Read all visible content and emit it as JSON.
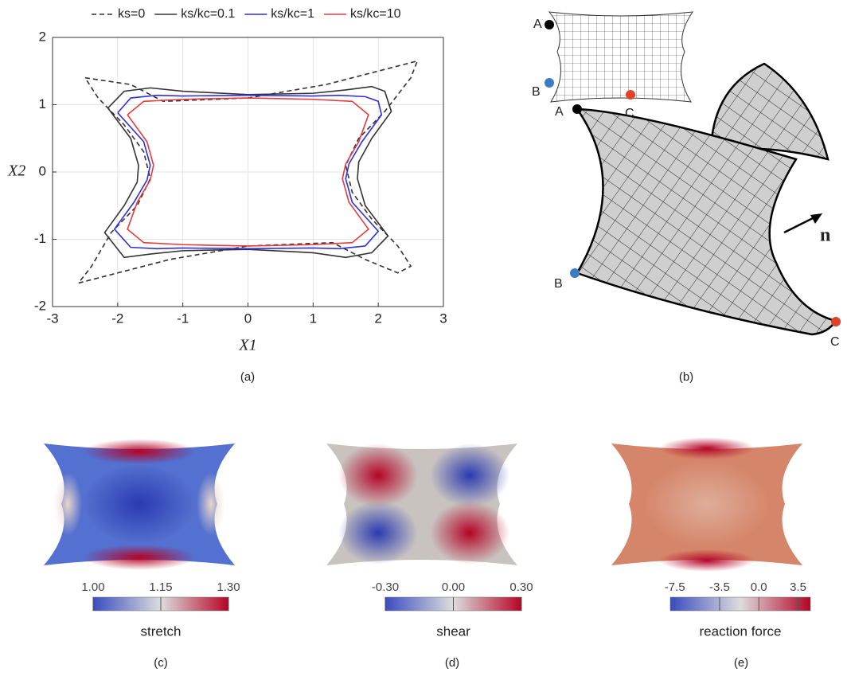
{
  "chart_data": [
    {
      "type": "line",
      "xlabel": "X1",
      "ylabel": "X2",
      "xlim": [
        -3,
        3
      ],
      "ylim": [
        -2,
        2
      ],
      "xticks": [
        -3,
        -2,
        -1,
        0,
        1,
        2,
        3
      ],
      "yticks": [
        -2,
        -1,
        0,
        1,
        2
      ],
      "grid": true,
      "legend": "top",
      "series": [
        {
          "name": "ks=0",
          "color": "#333333",
          "linestyle": "dashed",
          "x": [
            -2.5,
            -1.8,
            -1.3,
            0,
            1.2,
            2.0,
            2.6,
            2.5,
            2.1,
            1.7,
            1.5,
            1.6,
            1.9,
            2.3,
            2.5,
            2.3,
            1.8,
            1.3,
            0,
            -1.2,
            -2.0,
            -2.6,
            -2.4,
            -2.1,
            -1.7,
            -1.5,
            -1.6,
            -1.9,
            -2.3,
            -2.5
          ],
          "values": [
            1.4,
            1.3,
            1.05,
            1.1,
            1.3,
            1.5,
            1.65,
            1.4,
            0.9,
            0.5,
            0.1,
            -0.3,
            -0.7,
            -1.1,
            -1.4,
            -1.5,
            -1.3,
            -1.05,
            -1.1,
            -1.3,
            -1.5,
            -1.65,
            -1.4,
            -0.9,
            -0.5,
            -0.1,
            0.3,
            0.7,
            1.1,
            1.4
          ]
        },
        {
          "name": "ks/kc=0.1",
          "color": "#333333",
          "linestyle": "solid",
          "x": [
            -2.15,
            -1.9,
            -1.5,
            -1,
            0,
            1,
            1.5,
            1.9,
            2.1,
            2.2,
            1.9,
            1.7,
            1.68,
            1.8,
            2.15,
            1.9,
            1.5,
            1,
            0,
            -1,
            -1.5,
            -1.9,
            -2.2,
            -1.9,
            -1.7,
            -1.68,
            -1.8,
            -2.15
          ],
          "values": [
            0.95,
            1.2,
            1.25,
            1.2,
            1.15,
            1.17,
            1.22,
            1.27,
            1.2,
            0.9,
            0.5,
            0.15,
            -0.1,
            -0.5,
            -0.95,
            -1.2,
            -1.27,
            -1.2,
            -1.15,
            -1.17,
            -1.22,
            -1.27,
            -0.9,
            -0.5,
            -0.15,
            0.1,
            0.5,
            0.95
          ]
        },
        {
          "name": "ks/kc=1",
          "color": "#2f2fe0",
          "linestyle": "solid",
          "x": [
            -2.0,
            -1.8,
            -1.4,
            -1,
            0,
            1,
            1.4,
            1.8,
            2.0,
            2.05,
            1.75,
            1.55,
            1.5,
            1.6,
            2.0,
            1.8,
            1.4,
            1,
            0,
            -1,
            -1.4,
            -1.8,
            -2.05,
            -1.75,
            -1.55,
            -1.5,
            -1.6,
            -2.0
          ],
          "values": [
            0.88,
            1.1,
            1.14,
            1.13,
            1.14,
            1.13,
            1.14,
            1.12,
            1.05,
            0.85,
            0.45,
            0.12,
            -0.1,
            -0.45,
            -0.88,
            -1.1,
            -1.14,
            -1.13,
            -1.14,
            -1.13,
            -1.14,
            -1.12,
            -0.85,
            -0.45,
            -0.12,
            0.1,
            0.45,
            0.88
          ]
        },
        {
          "name": "ks/kc=10",
          "color": "#e83a3a",
          "linestyle": "solid",
          "x": [
            -1.85,
            -1.6,
            -1,
            0,
            1,
            1.6,
            1.85,
            1.7,
            1.5,
            1.45,
            1.55,
            1.85,
            1.6,
            1,
            0,
            -1,
            -1.6,
            -1.85,
            -1.7,
            -1.5,
            -1.45,
            -1.55,
            -1.85
          ],
          "values": [
            0.85,
            1.05,
            1.08,
            1.1,
            1.08,
            1.05,
            0.85,
            0.45,
            0.12,
            -0.1,
            -0.45,
            -0.85,
            -1.05,
            -1.08,
            -1.1,
            -1.08,
            -1.05,
            -0.85,
            -0.45,
            -0.12,
            0.1,
            0.45,
            0.85
          ]
        }
      ]
    },
    {
      "type": "colorbar",
      "label": "stretch",
      "xlim": [
        1.0,
        1.3
      ],
      "xticks": [
        {
          "value": 1.0,
          "label": "1.00"
        },
        {
          "value": 1.15,
          "label": "1.15"
        },
        {
          "value": 1.3,
          "label": "1.30"
        }
      ]
    },
    {
      "type": "colorbar",
      "label": "shear",
      "xlim": [
        -0.3,
        0.3
      ],
      "xticks": [
        {
          "value": -0.3,
          "label": "-0.30"
        },
        {
          "value": 0,
          "label": "0.00"
        },
        {
          "value": 0.3,
          "label": "0.30"
        }
      ]
    },
    {
      "type": "colorbar",
      "label": "reaction force",
      "xlim": [
        -7.9,
        4.6
      ],
      "xticks": [
        -7.5,
        -3.5,
        {
          "value": 0,
          "label": "0.0"
        },
        3.5
      ]
    }
  ],
  "panel_labels": [
    "(a)",
    "(b)",
    "(c)",
    "(d)",
    "(e)"
  ],
  "diagram": {
    "points": [
      "A",
      "B",
      "C",
      "A",
      "B",
      "C"
    ],
    "normal": "n"
  }
}
